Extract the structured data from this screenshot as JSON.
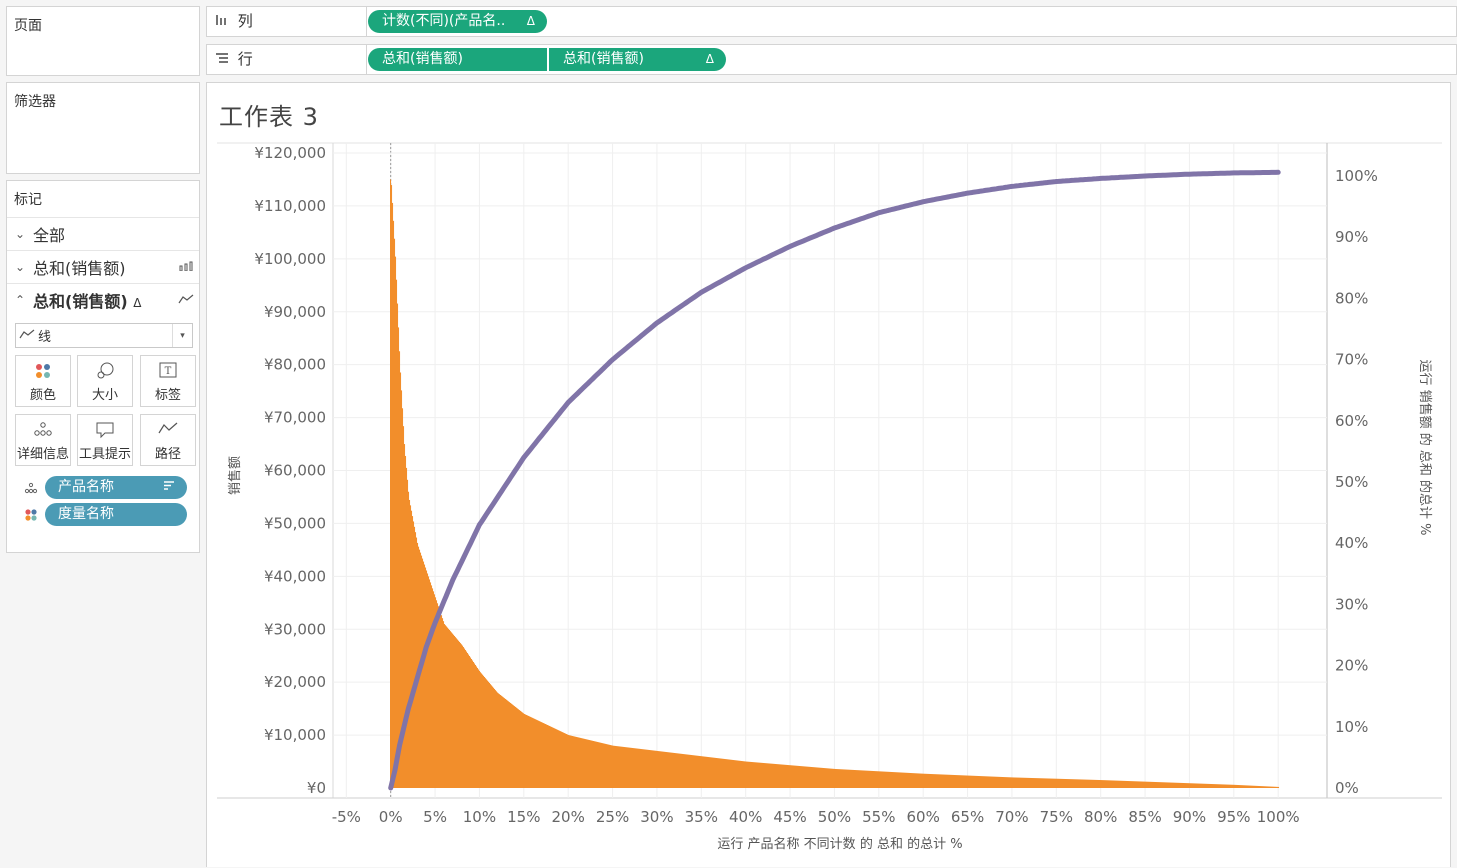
{
  "left": {
    "pages_title": "页面",
    "filters_title": "筛选器",
    "marks_title": "标记",
    "marks_rows": [
      {
        "label": "全部"
      },
      {
        "label": "总和(销售额)"
      },
      {
        "label": "总和(销售额)",
        "delta": "Δ"
      }
    ],
    "mark_type": "线",
    "cards": [
      "颜色",
      "大小",
      "标签",
      "详细信息",
      "工具提示",
      "路径"
    ],
    "fields": [
      "产品名称",
      "度量名称"
    ]
  },
  "shelves": {
    "columns_label": "列",
    "rows_label": "行",
    "columns_pills": [
      {
        "text": "计数(不同)(产品名..",
        "delta": "Δ"
      }
    ],
    "rows_pills": [
      {
        "text": "总和(销售额)"
      },
      {
        "text": "总和(销售额)",
        "delta": "Δ"
      }
    ]
  },
  "sheet": {
    "title": "工作表 3"
  },
  "colors": {
    "bar": "#f28e2b",
    "line": "#8074a8",
    "pill_green": "#1ba67c",
    "pill_blue": "#4b9bb5"
  },
  "chart_data": {
    "type": "bar+line",
    "xlabel": "运行 产品名称 不同计数 的 总和 的总计 %",
    "ylabel_left": "销售额",
    "ylabel_right": "运行 销售额 的 总和 的总计 %",
    "x_ticks": [
      "-5%",
      "0%",
      "5%",
      "10%",
      "15%",
      "20%",
      "25%",
      "30%",
      "35%",
      "40%",
      "45%",
      "50%",
      "55%",
      "60%",
      "65%",
      "70%",
      "75%",
      "80%",
      "85%",
      "90%",
      "95%",
      "100%"
    ],
    "y_left_ticks": [
      "¥0",
      "¥10,000",
      "¥20,000",
      "¥30,000",
      "¥40,000",
      "¥50,000",
      "¥60,000",
      "¥70,000",
      "¥80,000",
      "¥90,000",
      "¥100,000",
      "¥110,000",
      "¥120,000"
    ],
    "y_right_ticks": [
      "0%",
      "10%",
      "20%",
      "30%",
      "40%",
      "50%",
      "60%",
      "70%",
      "80%",
      "90%",
      "100%"
    ],
    "xlim": [
      -6.5,
      105.5
    ],
    "ylim_left": [
      0,
      120000
    ],
    "bars_series": {
      "name": "销售额",
      "x": [
        0,
        0.5,
        1,
        1.5,
        2,
        3,
        4,
        5,
        6,
        8,
        10,
        12,
        15,
        20,
        25,
        30,
        40,
        50,
        60,
        70,
        80,
        90,
        95,
        100
      ],
      "y": [
        115000,
        100000,
        80000,
        65000,
        55000,
        46000,
        41000,
        36000,
        31000,
        27000,
        22000,
        18000,
        14000,
        10000,
        8000,
        7000,
        5000,
        3600,
        2700,
        2000,
        1500,
        900,
        600,
        200
      ]
    },
    "line_series": {
      "name": "运行 销售额 的 总和 的总计 %",
      "x": [
        0,
        0.5,
        1,
        2,
        3,
        4,
        5,
        7,
        10,
        15,
        20,
        25,
        30,
        35,
        40,
        45,
        50,
        55,
        60,
        65,
        70,
        75,
        80,
        85,
        90,
        95,
        100
      ],
      "y": [
        0,
        3,
        7,
        13,
        18,
        23,
        27,
        34,
        43,
        54,
        63,
        70,
        76,
        81,
        85,
        88.5,
        91.5,
        94,
        95.8,
        97.2,
        98.3,
        99.1,
        99.6,
        100,
        100.3,
        100.5,
        100.6
      ]
    }
  }
}
